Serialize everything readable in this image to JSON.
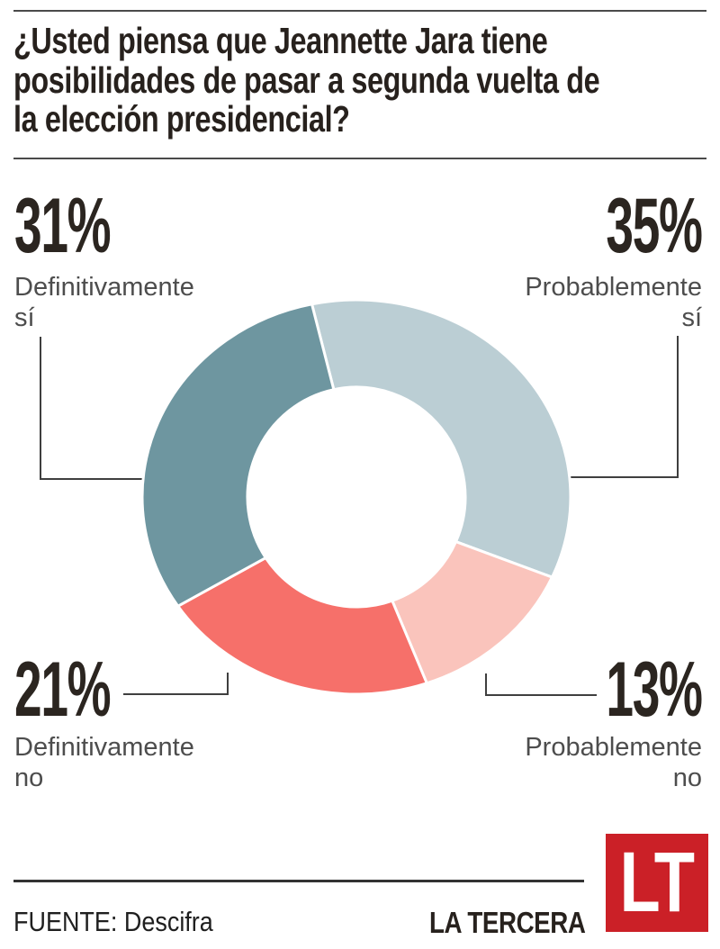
{
  "title": {
    "lines": [
      "¿Usted piensa que Jeannette Jara tiene",
      "posibilidades de pasar a segunda vuelta de",
      "la elección presidencial?"
    ]
  },
  "chart_data": {
    "type": "pie",
    "subtype": "donut",
    "unit": "%",
    "total": 100,
    "start_angle_deg": -12,
    "slices": [
      {
        "label": "Probablemente sí",
        "value": 35,
        "color": "#bbced4"
      },
      {
        "label": "Probablemente no",
        "value": 13,
        "color": "#fac4bc"
      },
      {
        "label": "Definitivamente no",
        "value": 21,
        "color": "#f6706a"
      },
      {
        "label": "Definitivamente sí",
        "value": 31,
        "color": "#6e96a0"
      }
    ]
  },
  "callouts": {
    "top_left": {
      "value": "31%",
      "line1": "Definitivamente",
      "line2": "sí"
    },
    "top_right": {
      "value": "35%",
      "line1": "Probablemente",
      "line2": "sí"
    },
    "bottom_left": {
      "value": "21%",
      "line1": "Definitivamente",
      "line2": "no"
    },
    "bottom_right": {
      "value": "13%",
      "line1": "Probablemente",
      "line2": "no"
    }
  },
  "footer": {
    "source": "FUENTE: Descifra",
    "brand": "LA TERCERA",
    "logo_text": "LT",
    "logo_color": "#cb2027"
  }
}
